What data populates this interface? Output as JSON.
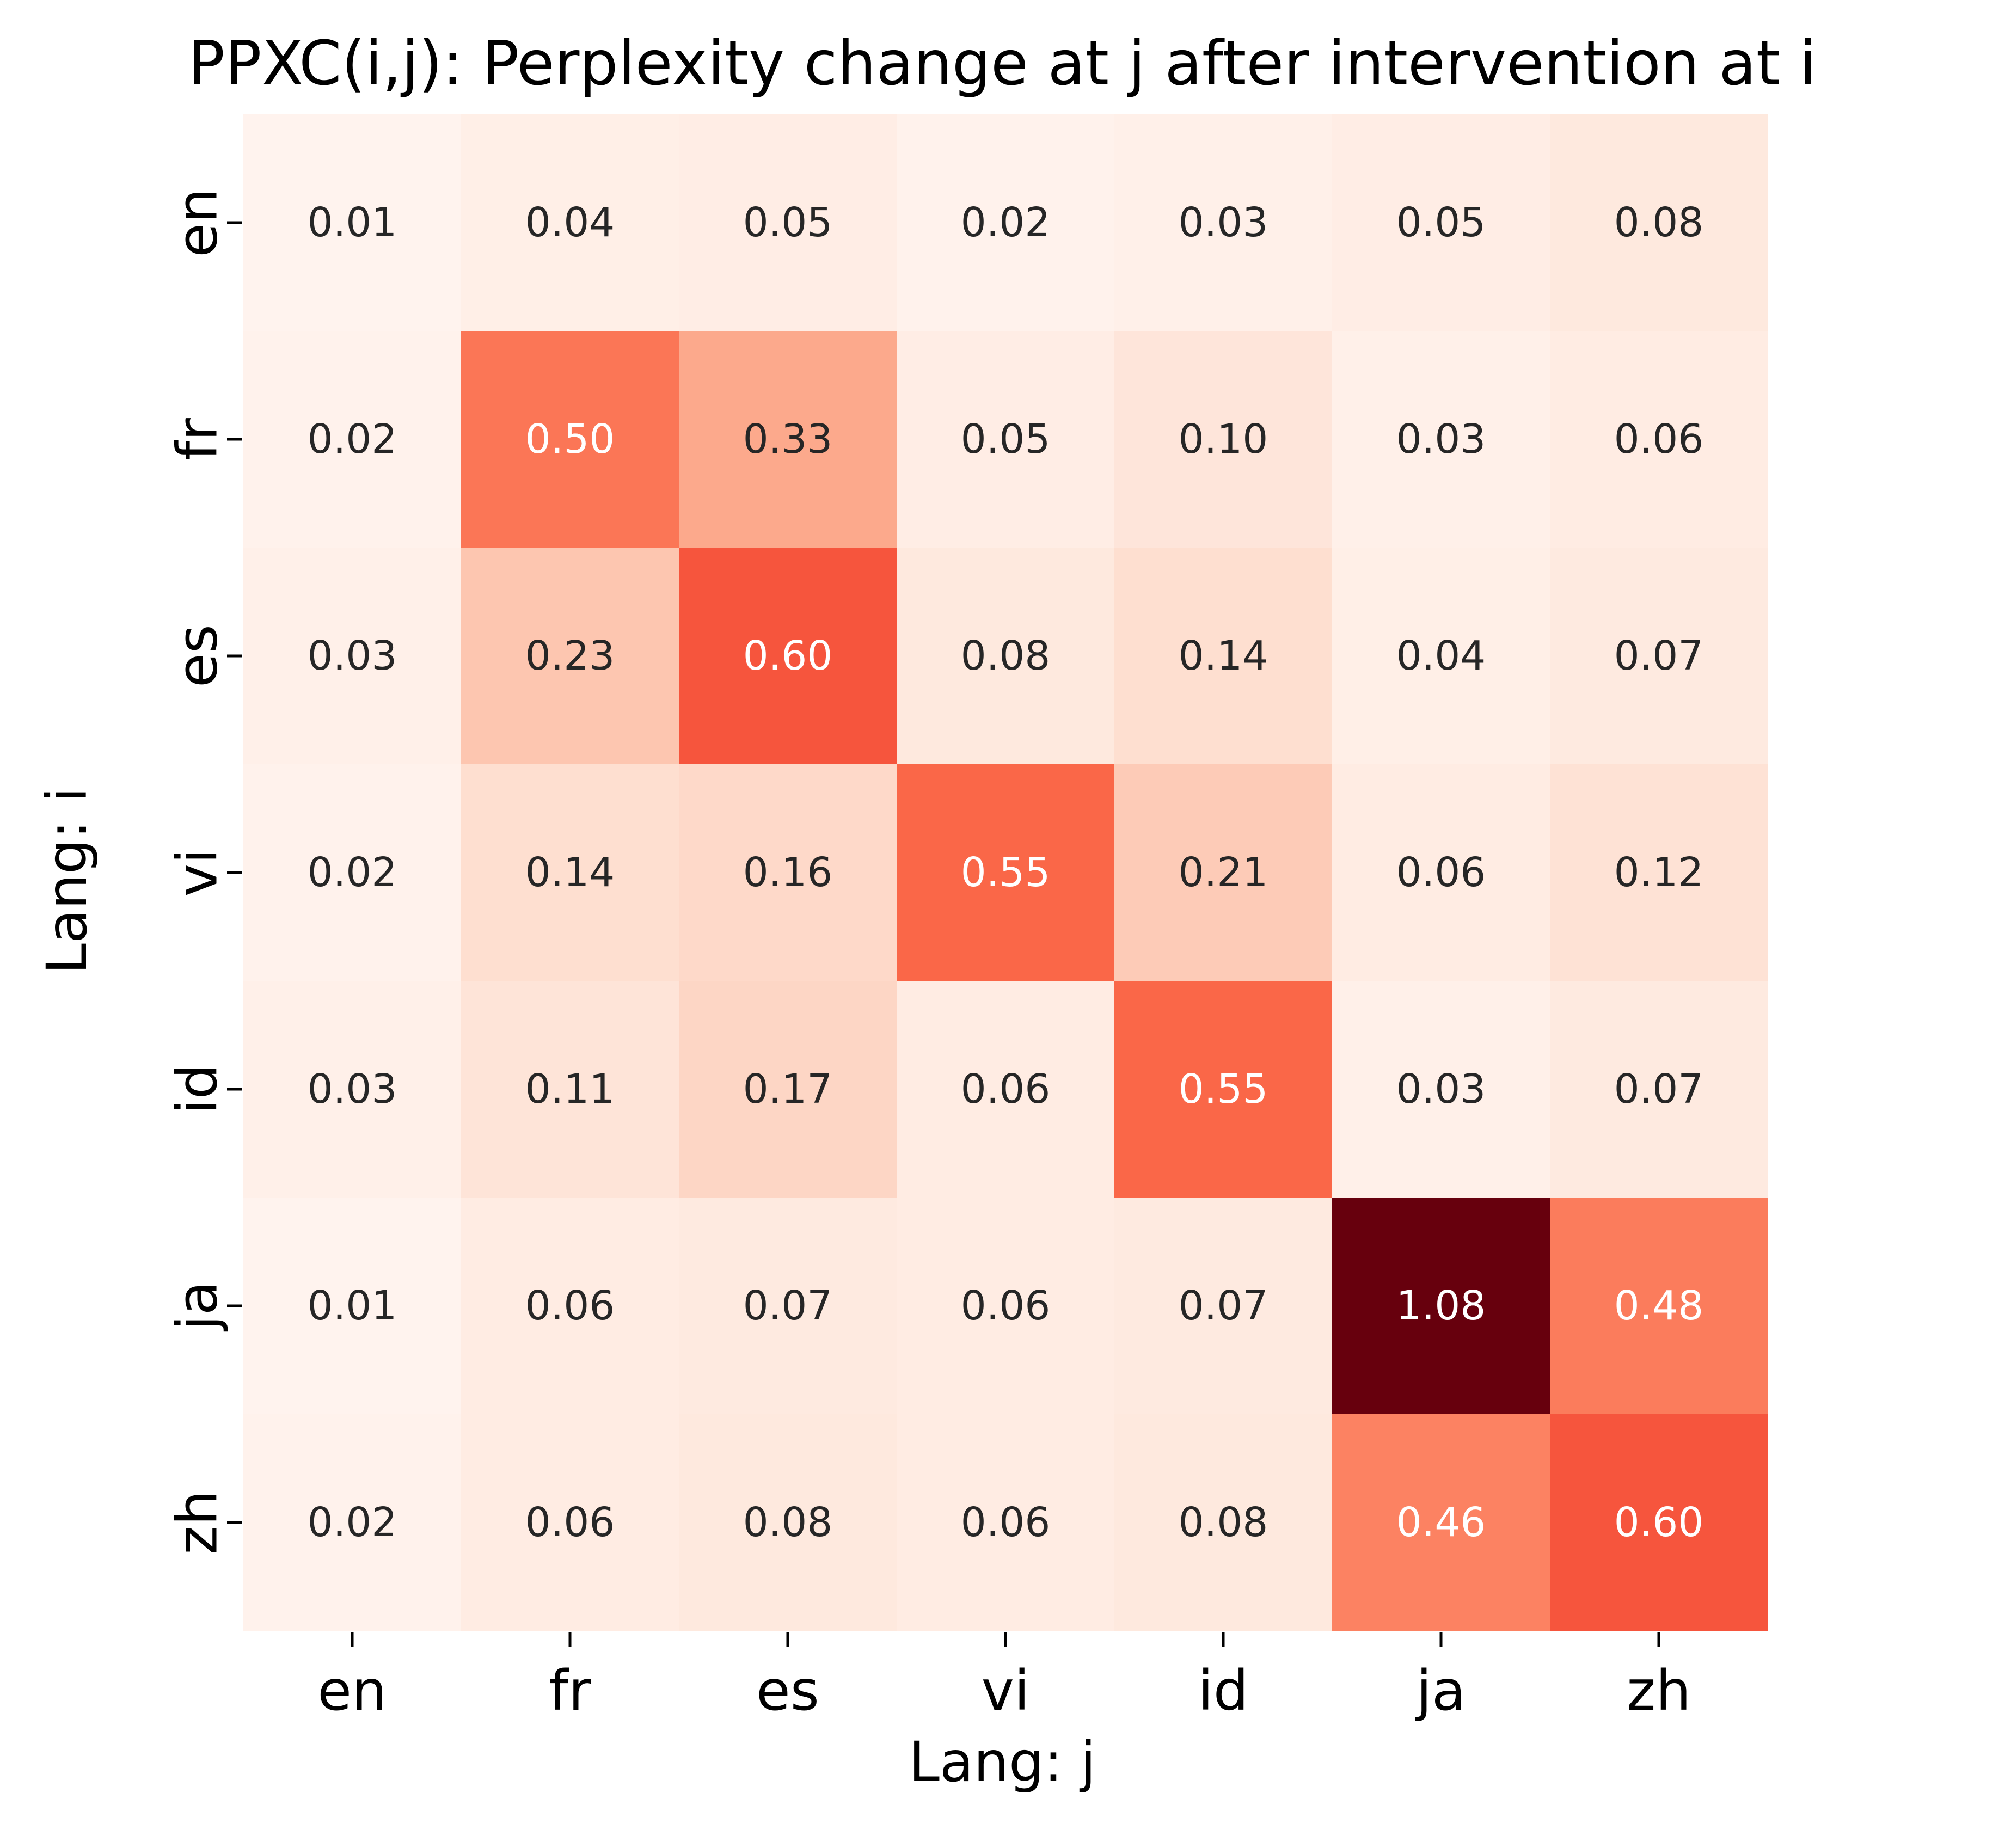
{
  "chart_data": {
    "type": "heatmap",
    "title": "PPXC(i,j): Perplexity change at j after intervention at i",
    "xlabel": "Lang: j",
    "ylabel": "Lang: i",
    "x_categories": [
      "en",
      "fr",
      "es",
      "vi",
      "id",
      "ja",
      "zh"
    ],
    "y_categories": [
      "en",
      "fr",
      "es",
      "vi",
      "id",
      "ja",
      "zh"
    ],
    "values": [
      [
        0.01,
        0.04,
        0.05,
        0.02,
        0.03,
        0.05,
        0.08
      ],
      [
        0.02,
        0.5,
        0.33,
        0.05,
        0.1,
        0.03,
        0.06
      ],
      [
        0.03,
        0.23,
        0.6,
        0.08,
        0.14,
        0.04,
        0.07
      ],
      [
        0.02,
        0.14,
        0.16,
        0.55,
        0.21,
        0.06,
        0.12
      ],
      [
        0.03,
        0.11,
        0.17,
        0.06,
        0.55,
        0.03,
        0.07
      ],
      [
        0.01,
        0.06,
        0.07,
        0.06,
        0.07,
        1.08,
        0.48
      ],
      [
        0.02,
        0.06,
        0.08,
        0.06,
        0.08,
        0.46,
        0.6
      ]
    ],
    "value_format": "0.00",
    "colormap": "Reds",
    "value_range": [
      0,
      1.08
    ],
    "colorbar": false,
    "grid": false
  }
}
